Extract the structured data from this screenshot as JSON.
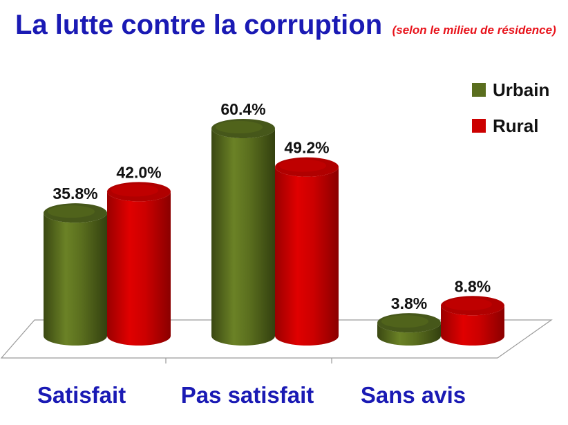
{
  "colors": {
    "urbain": "#5a6e1e",
    "rural": "#cc0000",
    "title": "#1a1ab4",
    "subtitle": "#e8141c"
  },
  "chart_data": {
    "type": "bar",
    "title": "La lutte contre la corruption",
    "subtitle": "(selon  le milieu de résidence)",
    "categories": [
      "Satisfait",
      "Pas satisfait",
      "Sans avis"
    ],
    "series": [
      {
        "name": "Urbain",
        "values": [
          35.8,
          60.4,
          3.8
        ],
        "labels": [
          "35.8%",
          "60.4%",
          "3.8%"
        ]
      },
      {
        "name": "Rural",
        "values": [
          42.0,
          49.2,
          8.8
        ],
        "labels": [
          "42.0%",
          "49.2%",
          "8.8%"
        ]
      }
    ],
    "ylim": [
      0,
      70
    ],
    "grid": false,
    "legend": "top-right",
    "style": "3d-cylinder"
  }
}
